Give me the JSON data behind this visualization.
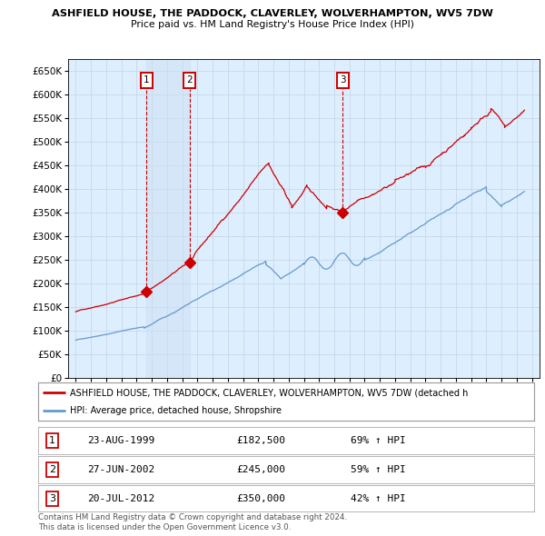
{
  "title": "ASHFIELD HOUSE, THE PADDOCK, CLAVERLEY, WOLVERHAMPTON, WV5 7DW",
  "subtitle": "Price paid vs. HM Land Registry's House Price Index (HPI)",
  "background_color": "#ffffff",
  "grid_color": "#c8d8e8",
  "plot_bg_color": "#ddeeff",
  "red_line_color": "#cc0000",
  "blue_line_color": "#6699cc",
  "sale_marker_color": "#cc0000",
  "shade_color": "#ccddf0",
  "transactions": [
    {
      "label": "1",
      "date_num": 1999.648,
      "price": 182500,
      "hpi_pct": "69% ↑ HPI",
      "date_str": "23-AUG-1999"
    },
    {
      "label": "2",
      "date_num": 2002.486,
      "price": 245000,
      "hpi_pct": "59% ↑ HPI",
      "date_str": "27-JUN-2002"
    },
    {
      "label": "3",
      "date_num": 2012.553,
      "price": 350000,
      "hpi_pct": "42% ↑ HPI",
      "date_str": "20-JUL-2012"
    }
  ],
  "legend_label_red": "ASHFIELD HOUSE, THE PADDOCK, CLAVERLEY, WOLVERHAMPTON, WV5 7DW (detached h",
  "legend_label_blue": "HPI: Average price, detached house, Shropshire",
  "footer": "Contains HM Land Registry data © Crown copyright and database right 2024.\nThis data is licensed under the Open Government Licence v3.0.",
  "ylim": [
    0,
    675000
  ],
  "yticks": [
    0,
    50000,
    100000,
    150000,
    200000,
    250000,
    300000,
    350000,
    400000,
    450000,
    500000,
    550000,
    600000,
    650000
  ],
  "xlim_start": 1994.5,
  "xlim_end": 2025.5
}
